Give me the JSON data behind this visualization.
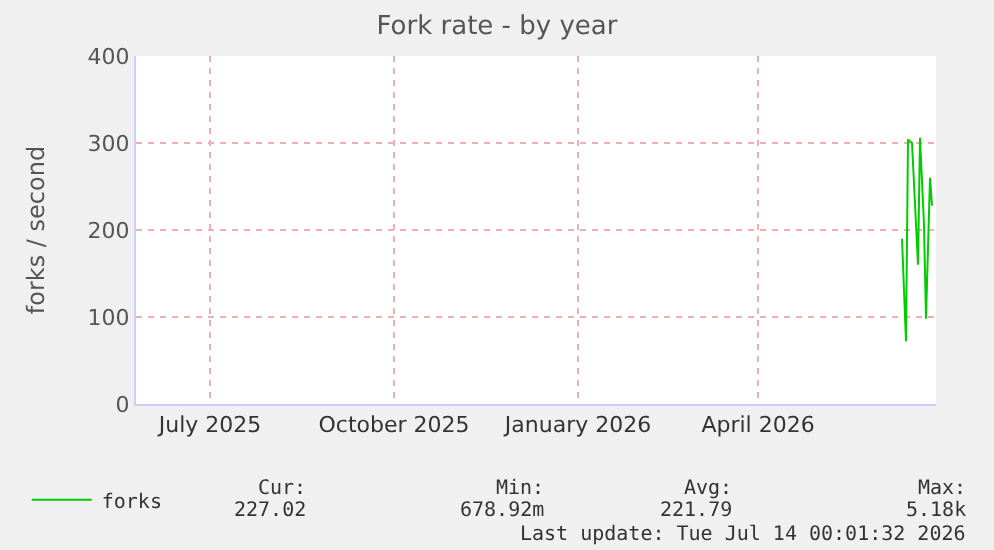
{
  "chart_data": {
    "type": "line",
    "title": "Fork rate - by year",
    "ylabel": "forks / second",
    "x": [
      "2026-06-27",
      "2026-06-29",
      "2026-06-30",
      "2026-07-02",
      "2026-07-05",
      "2026-07-06",
      "2026-07-08",
      "2026-07-09",
      "2026-07-11",
      "2026-07-12"
    ],
    "series": [
      {
        "name": "forks",
        "color": "#00cc00",
        "values": [
          190,
          72,
          304,
          300,
          160,
          306,
          206,
          98,
          260,
          228
        ]
      }
    ],
    "xlim": [
      "2025-06-09",
      "2026-07-14"
    ],
    "xticks": [
      {
        "value": "2025-07-16",
        "label": "July 2025"
      },
      {
        "value": "2025-10-16",
        "label": "October 2025"
      },
      {
        "value": "2026-01-16",
        "label": "January 2026"
      },
      {
        "value": "2026-04-16",
        "label": "April 2026"
      }
    ],
    "ylim": [
      0,
      400
    ],
    "yticks": [
      0,
      100,
      200,
      300,
      400
    ],
    "grid": true,
    "legend": "bottom left",
    "marker": "none",
    "line_style": "solid",
    "annotations": [
      "Cur:",
      "227.02",
      "Min:",
      "678.92m",
      "Avg:",
      "221.79",
      "Max:",
      "5.18k",
      "Last update: Tue Jul 14 00:01:32 2026"
    ]
  }
}
